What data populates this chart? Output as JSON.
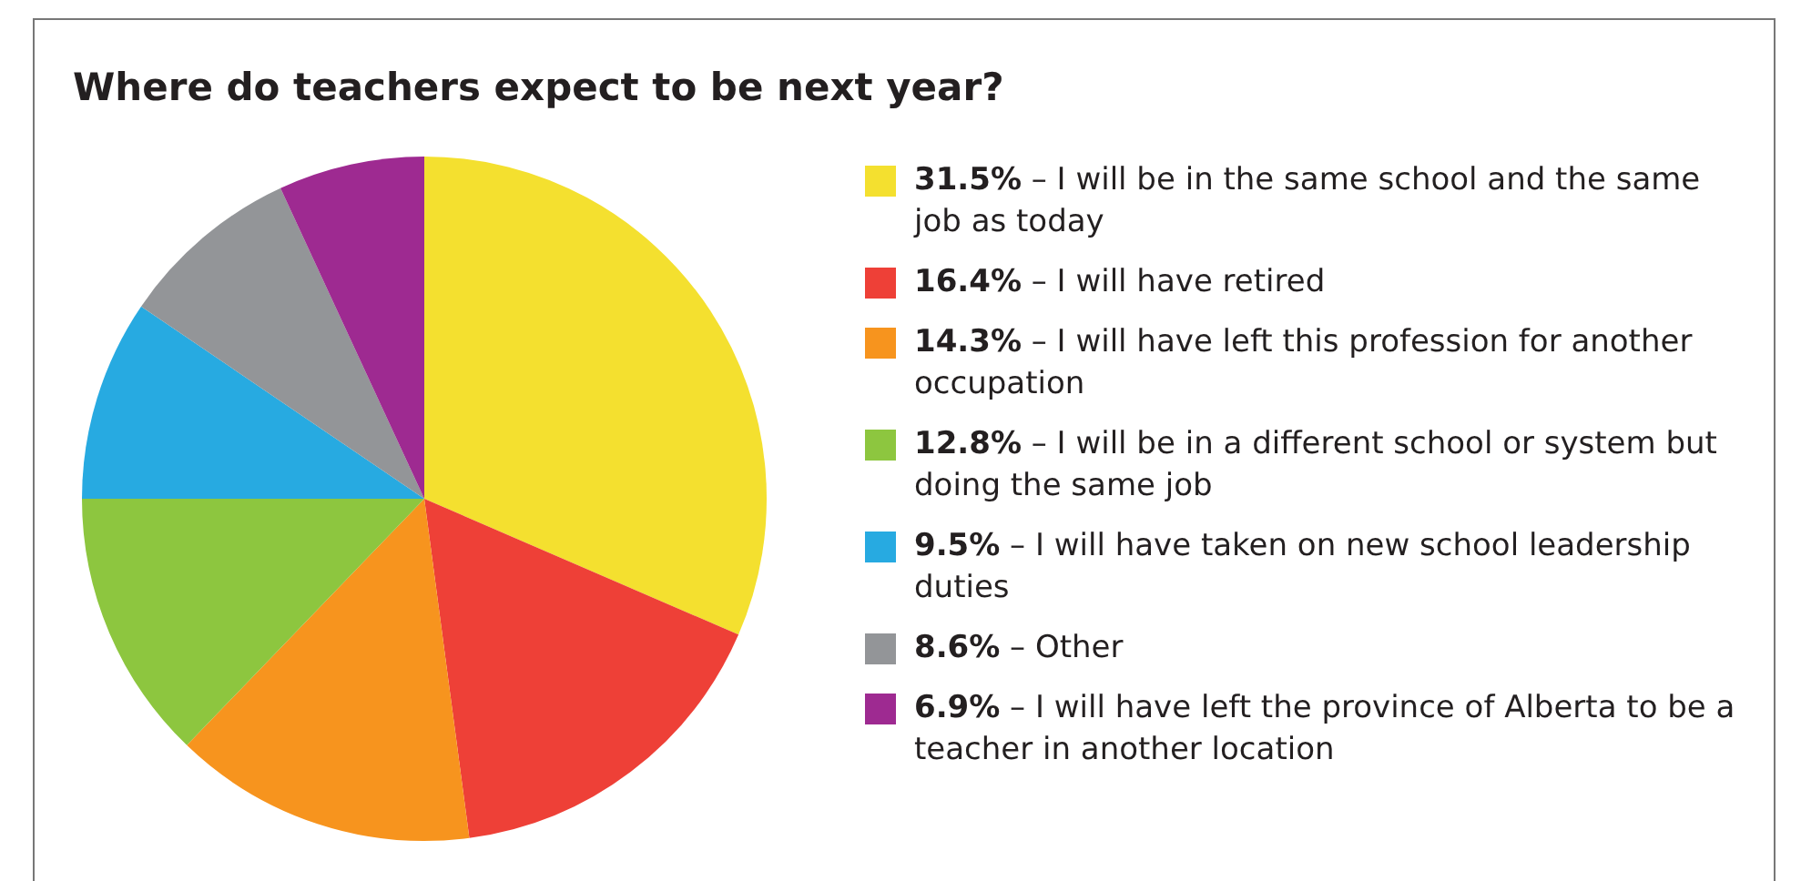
{
  "chart_data": {
    "type": "pie",
    "title": "Where do teachers expect to be next year?",
    "categories": [
      "31.5% – I will be in the same school and the same job as today",
      "16.4% – I will have retired",
      "14.3% – I will have left this profession for another occupation",
      "12.8% – I will be in a different school or system but doing the same job",
      "9.5% – I will have taken on new school leadership duties",
      "8.6% – Other",
      "6.9% – I will have left the province of Alberta to be a teacher in another location"
    ],
    "values": [
      31.5,
      16.4,
      14.3,
      12.8,
      9.5,
      8.6,
      6.9
    ],
    "colors": [
      "#f4e02f",
      "#ee4037",
      "#f7941e",
      "#8dc63f",
      "#27aae1",
      "#939598",
      "#9e2a91"
    ],
    "legend": "right"
  }
}
